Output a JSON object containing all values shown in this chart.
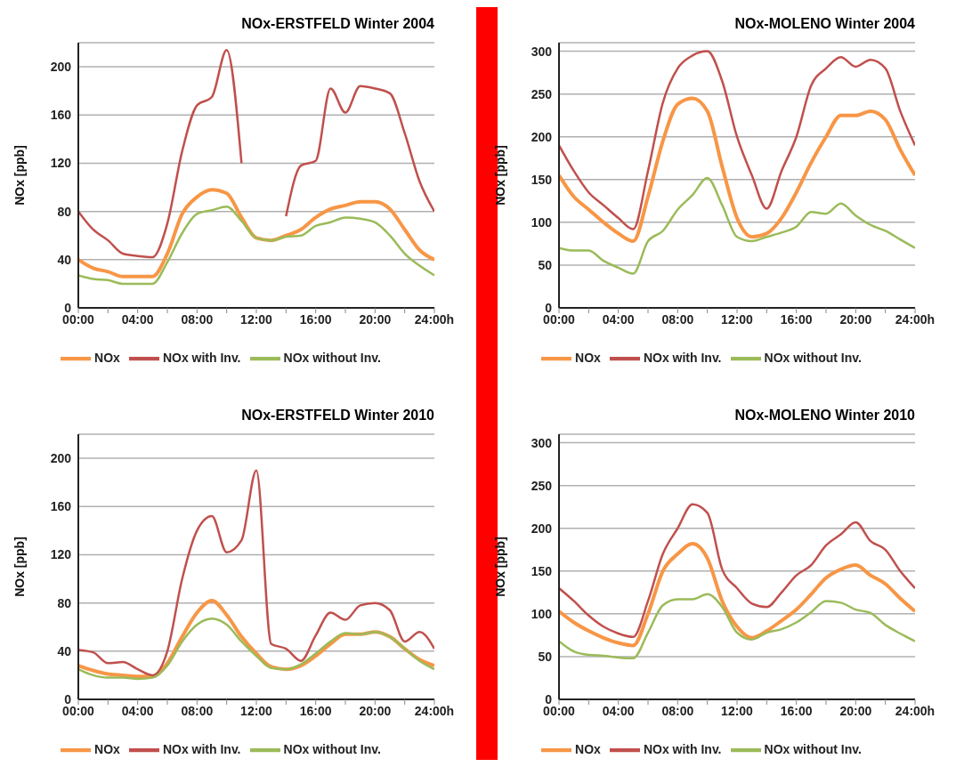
{
  "chart_data": [
    {
      "type": "line",
      "title": "NOx-ERSTFELD Winter 2004",
      "ylabel": "NOx [ppb]",
      "x": [
        0,
        1,
        2,
        3,
        4,
        5,
        6,
        7,
        8,
        9,
        10,
        11,
        12,
        13,
        14,
        15,
        16,
        17,
        18,
        19,
        20,
        21,
        22,
        23,
        24
      ],
      "xlim": [
        0,
        24
      ],
      "xticks": [
        {
          "value": 0,
          "label": "00:00"
        },
        {
          "value": 2,
          "label": null
        },
        {
          "value": 4,
          "label": "04:00"
        },
        {
          "value": 6,
          "label": null
        },
        {
          "value": 8,
          "label": "08:00"
        },
        {
          "value": 10,
          "label": null
        },
        {
          "value": 12,
          "label": "12:00"
        },
        {
          "value": 14,
          "label": null
        },
        {
          "value": 16,
          "label": "16:00"
        },
        {
          "value": 18,
          "label": null
        },
        {
          "value": 20,
          "label": "20:00"
        },
        {
          "value": 22,
          "label": null
        },
        {
          "value": 24,
          "label": "24:00h"
        }
      ],
      "ylim": [
        0,
        220
      ],
      "yticks": [
        0,
        40,
        80,
        120,
        160,
        200
      ],
      "grid": "y",
      "legend": "bottom",
      "marker": "none",
      "line_style": "solid",
      "series": [
        {
          "name": "NOx",
          "color": "#f79646",
          "values": [
            40,
            33,
            30,
            26,
            26,
            26,
            45,
            78,
            92,
            98,
            95,
            75,
            58,
            56,
            60,
            65,
            75,
            82,
            85,
            88,
            88,
            82,
            65,
            48,
            40
          ]
        },
        {
          "name": "NOx with Inv.",
          "color": "#c0504d",
          "values": [
            80,
            65,
            56,
            45,
            43,
            42,
            70,
            130,
            168,
            175,
            214,
            120,
            null,
            null,
            76,
            118,
            122,
            182,
            162,
            184,
            182,
            178,
            145,
            105,
            80
          ]
        },
        {
          "name": "NOx without Inv.",
          "color": "#9bbb59",
          "values": [
            27,
            24,
            23,
            20,
            20,
            20,
            38,
            62,
            78,
            81,
            84,
            72,
            58,
            56,
            59,
            60,
            68,
            71,
            75,
            74,
            71,
            60,
            45,
            35,
            27
          ]
        }
      ]
    },
    {
      "type": "line",
      "title": "NOx-MOLENO Winter 2004",
      "ylabel": "NOx [ppb]",
      "x": [
        0,
        1,
        2,
        3,
        4,
        5,
        6,
        7,
        8,
        9,
        10,
        11,
        12,
        13,
        14,
        15,
        16,
        17,
        18,
        19,
        20,
        21,
        22,
        23,
        24
      ],
      "xlim": [
        0,
        24
      ],
      "xticks": [
        {
          "value": 0,
          "label": "00:00"
        },
        {
          "value": 2,
          "label": null
        },
        {
          "value": 4,
          "label": "04:00"
        },
        {
          "value": 6,
          "label": null
        },
        {
          "value": 8,
          "label": "08:00"
        },
        {
          "value": 10,
          "label": null
        },
        {
          "value": 12,
          "label": "12:00"
        },
        {
          "value": 14,
          "label": null
        },
        {
          "value": 16,
          "label": "16:00"
        },
        {
          "value": 18,
          "label": null
        },
        {
          "value": 20,
          "label": "20:00"
        },
        {
          "value": 22,
          "label": null
        },
        {
          "value": 24,
          "label": "24:00h"
        }
      ],
      "ylim": [
        0,
        310
      ],
      "yticks": [
        0,
        50,
        100,
        150,
        200,
        250,
        300
      ],
      "grid": "y",
      "legend": "bottom",
      "marker": "none",
      "line_style": "solid",
      "series": [
        {
          "name": "NOx",
          "color": "#f79646",
          "values": [
            155,
            130,
            115,
            100,
            87,
            78,
            130,
            195,
            238,
            245,
            230,
            165,
            105,
            83,
            87,
            105,
            135,
            170,
            200,
            225,
            225,
            230,
            220,
            185,
            155
          ]
        },
        {
          "name": "NOx with Inv.",
          "color": "#c0504d",
          "values": [
            190,
            160,
            135,
            120,
            105,
            92,
            160,
            240,
            280,
            295,
            300,
            265,
            200,
            155,
            116,
            160,
            200,
            260,
            280,
            293,
            282,
            290,
            280,
            230,
            190
          ]
        },
        {
          "name": "NOx without Inv.",
          "color": "#9bbb59",
          "values": [
            70,
            67,
            67,
            55,
            47,
            40,
            78,
            90,
            115,
            132,
            152,
            120,
            83,
            78,
            83,
            88,
            95,
            112,
            110,
            122,
            108,
            97,
            90,
            80,
            70
          ]
        }
      ]
    },
    {
      "type": "line",
      "title": "NOx-ERSTFELD Winter 2010",
      "ylabel": "NOx [ppb]",
      "x": [
        0,
        1,
        2,
        3,
        4,
        5,
        6,
        7,
        8,
        9,
        10,
        11,
        12,
        13,
        14,
        15,
        16,
        17,
        18,
        19,
        20,
        21,
        22,
        23,
        24
      ],
      "xlim": [
        0,
        24
      ],
      "xticks": [
        {
          "value": 0,
          "label": "00:00"
        },
        {
          "value": 2,
          "label": null
        },
        {
          "value": 4,
          "label": "04:00"
        },
        {
          "value": 6,
          "label": null
        },
        {
          "value": 8,
          "label": "08:00"
        },
        {
          "value": 10,
          "label": null
        },
        {
          "value": 12,
          "label": "12:00"
        },
        {
          "value": 14,
          "label": null
        },
        {
          "value": 16,
          "label": "16:00"
        },
        {
          "value": 18,
          "label": null
        },
        {
          "value": 20,
          "label": "20:00"
        },
        {
          "value": 22,
          "label": null
        },
        {
          "value": 24,
          "label": "24:00h"
        }
      ],
      "ylim": [
        0,
        220
      ],
      "yticks": [
        0,
        40,
        80,
        120,
        160,
        200
      ],
      "grid": "y",
      "legend": "bottom",
      "marker": "none",
      "line_style": "solid",
      "series": [
        {
          "name": "NOx",
          "color": "#f79646",
          "values": [
            28,
            24,
            21,
            20,
            19,
            19,
            30,
            52,
            72,
            82,
            70,
            52,
            38,
            27,
            25,
            28,
            36,
            46,
            54,
            54,
            56,
            52,
            42,
            33,
            28
          ]
        },
        {
          "name": "NOx with Inv.",
          "color": "#c0504d",
          "values": [
            41,
            39,
            30,
            31,
            25,
            20,
            40,
            100,
            140,
            152,
            122,
            132,
            190,
            46,
            42,
            32,
            53,
            72,
            66,
            78,
            80,
            74,
            48,
            56,
            42
          ]
        },
        {
          "name": "NOx without Inv.",
          "color": "#9bbb59",
          "values": [
            25,
            20,
            18,
            18,
            17,
            18,
            28,
            48,
            62,
            67,
            62,
            48,
            36,
            26,
            25,
            29,
            38,
            48,
            55,
            54,
            56,
            52,
            42,
            32,
            25
          ]
        }
      ]
    },
    {
      "type": "line",
      "title": "NOx-MOLENO Winter 2010",
      "ylabel": "NOx [ppb]",
      "x": [
        0,
        1,
        2,
        3,
        4,
        5,
        6,
        7,
        8,
        9,
        10,
        11,
        12,
        13,
        14,
        15,
        16,
        17,
        18,
        19,
        20,
        21,
        22,
        23,
        24
      ],
      "xlim": [
        0,
        24
      ],
      "xticks": [
        {
          "value": 0,
          "label": "00:00"
        },
        {
          "value": 2,
          "label": null
        },
        {
          "value": 4,
          "label": "04:00"
        },
        {
          "value": 6,
          "label": null
        },
        {
          "value": 8,
          "label": "08:00"
        },
        {
          "value": 10,
          "label": null
        },
        {
          "value": 12,
          "label": "12:00"
        },
        {
          "value": 14,
          "label": null
        },
        {
          "value": 16,
          "label": "16:00"
        },
        {
          "value": 18,
          "label": null
        },
        {
          "value": 20,
          "label": "20:00"
        },
        {
          "value": 22,
          "label": null
        },
        {
          "value": 24,
          "label": "24:00h"
        }
      ],
      "ylim": [
        0,
        310
      ],
      "yticks": [
        0,
        50,
        100,
        150,
        200,
        250,
        300
      ],
      "grid": "y",
      "legend": "bottom",
      "marker": "none",
      "line_style": "solid",
      "series": [
        {
          "name": "NOx",
          "color": "#f79646",
          "values": [
            103,
            90,
            80,
            72,
            66,
            63,
            100,
            150,
            170,
            182,
            165,
            115,
            85,
            72,
            80,
            92,
            105,
            123,
            142,
            152,
            157,
            145,
            135,
            118,
            103
          ]
        },
        {
          "name": "NOx with Inv.",
          "color": "#c0504d",
          "values": [
            130,
            115,
            98,
            85,
            77,
            73,
            115,
            170,
            200,
            228,
            218,
            152,
            130,
            112,
            108,
            125,
            145,
            157,
            180,
            193,
            207,
            185,
            175,
            150,
            130
          ]
        },
        {
          "name": "NOx without Inv.",
          "color": "#9bbb59",
          "values": [
            68,
            56,
            52,
            51,
            49,
            48,
            78,
            110,
            117,
            117,
            123,
            108,
            78,
            70,
            78,
            82,
            90,
            102,
            115,
            113,
            105,
            101,
            87,
            77,
            68
          ]
        }
      ]
    }
  ]
}
